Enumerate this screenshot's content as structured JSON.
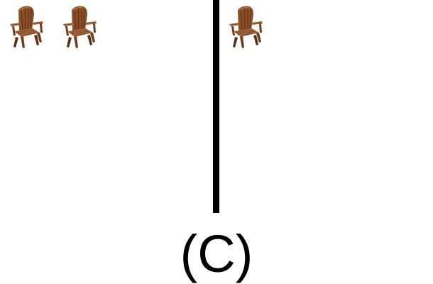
{
  "panels": [
    {
      "name": "left",
      "chair_count": 2
    },
    {
      "name": "right",
      "chair_count": 1
    }
  ],
  "icon": "adirondack-chair-icon",
  "colors": {
    "chair_dark": "#5a3118",
    "chair_mid": "#8a4f27",
    "chair_light": "#a8683a",
    "divider": "#000000"
  },
  "caption": "(C)"
}
